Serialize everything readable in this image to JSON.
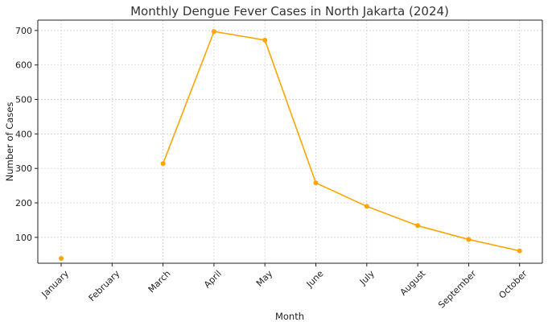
{
  "chart_data": {
    "type": "line",
    "title": "Monthly Dengue Fever Cases in North Jakarta (2024)",
    "xlabel": "Month",
    "ylabel": "Number of Cases",
    "categories": [
      "January",
      "February",
      "March",
      "April",
      "May",
      "June",
      "July",
      "August",
      "September",
      "October"
    ],
    "series": [
      {
        "values": [
          39,
          null,
          314,
          697,
          672,
          258,
          190,
          134,
          94,
          61
        ],
        "color": "#ffa500"
      }
    ],
    "ylim": [
      25,
      730
    ],
    "yticks": [
      100,
      200,
      300,
      400,
      500,
      600,
      700
    ],
    "grid": true,
    "legend": "none"
  }
}
